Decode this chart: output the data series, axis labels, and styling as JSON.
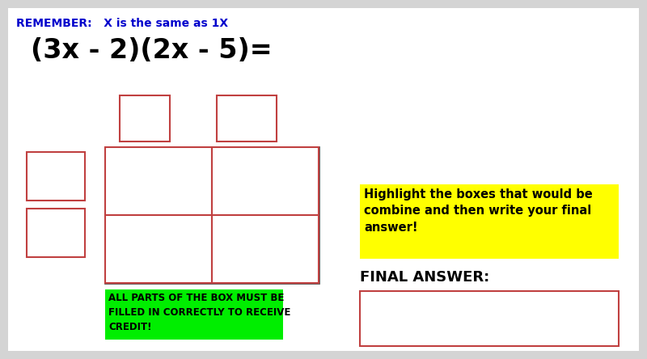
{
  "bg_color": "#d4d4d4",
  "content_bg": "#ffffff",
  "remember_text": "REMEMBER:   X is the same as 1X",
  "remember_color": "#0000cc",
  "equation_text": "(3x - 2)(2x - 5)=",
  "highlight_text": "Highlight the boxes that would be\ncombine and then write your final\nanswer!",
  "highlight_bg": "#ffff00",
  "final_answer_text": "FINAL ANSWER:",
  "green_text": "ALL PARTS OF THE BOX MUST BE\nFILLED IN CORRECTLY TO RECEIVE\nCREDIT!",
  "green_bg": "#00ee00",
  "red_box_color": "#c04040",
  "dark_box_color": "#555555",
  "fig_w": 8.0,
  "fig_h": 4.44,
  "dpi": 100
}
